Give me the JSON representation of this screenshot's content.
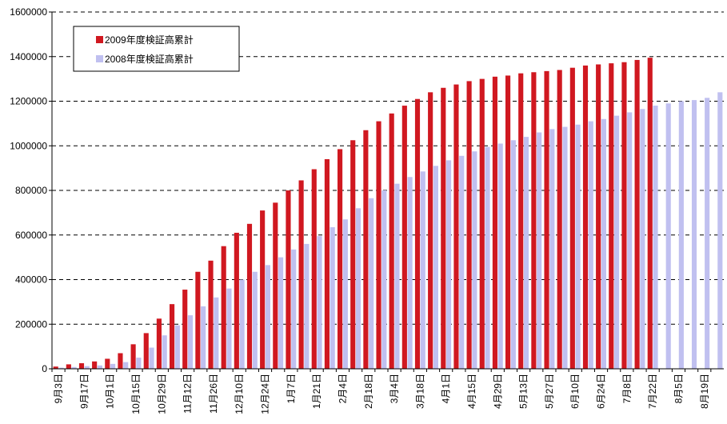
{
  "chart_data": {
    "type": "bar",
    "categories": [
      "9月3日",
      null,
      "9月17日",
      null,
      "10月1日",
      null,
      "10月15日",
      null,
      "10月29日",
      null,
      "11月12日",
      null,
      "11月26日",
      null,
      "12月10日",
      null,
      "12月24日",
      null,
      "1月7日",
      null,
      "1月21日",
      null,
      "2月4日",
      null,
      "2月18日",
      null,
      "3月4日",
      null,
      "3月18日",
      null,
      "4月1日",
      null,
      "4月15日",
      null,
      "4月29日",
      null,
      "5月13日",
      null,
      "5月27日",
      null,
      "6月10日",
      null,
      "6月24日",
      null,
      "7月8日",
      null,
      "7月22日",
      null,
      "8月5日",
      null,
      "8月19日",
      null
    ],
    "series": [
      {
        "name": "2008年度検証高累計",
        "color": "#c0c0f0",
        "values": [
          5000,
          8000,
          12000,
          15000,
          22000,
          30000,
          50000,
          95000,
          150000,
          195000,
          240000,
          280000,
          320000,
          360000,
          400000,
          435000,
          465000,
          500000,
          535000,
          560000,
          595000,
          635000,
          670000,
          720000,
          765000,
          800000,
          830000,
          860000,
          885000,
          910000,
          935000,
          955000,
          975000,
          995000,
          1010000,
          1025000,
          1040000,
          1060000,
          1075000,
          1085000,
          1095000,
          1110000,
          1120000,
          1135000,
          1150000,
          1165000,
          1180000,
          1190000,
          1200000,
          1205000,
          1215000,
          1240000
        ]
      },
      {
        "name": "2009年度検証高累計",
        "color": "#d01820",
        "values": [
          10000,
          20000,
          25000,
          33000,
          45000,
          70000,
          110000,
          160000,
          225000,
          290000,
          355000,
          435000,
          485000,
          550000,
          610000,
          650000,
          710000,
          745000,
          800000,
          845000,
          895000,
          940000,
          985000,
          1025000,
          1070000,
          1110000,
          1145000,
          1180000,
          1210000,
          1240000,
          1260000,
          1275000,
          1290000,
          1300000,
          1310000,
          1315000,
          1325000,
          1330000,
          1335000,
          1340000,
          1350000,
          1360000,
          1365000,
          1370000,
          1375000,
          1385000,
          1395000,
          null,
          null,
          null,
          null,
          null
        ]
      }
    ],
    "ylim": [
      0,
      1600000
    ],
    "yticks": [
      0,
      200000,
      400000,
      600000,
      800000,
      1000000,
      1200000,
      1400000,
      1600000
    ],
    "grid": true,
    "legend": "upper left"
  }
}
